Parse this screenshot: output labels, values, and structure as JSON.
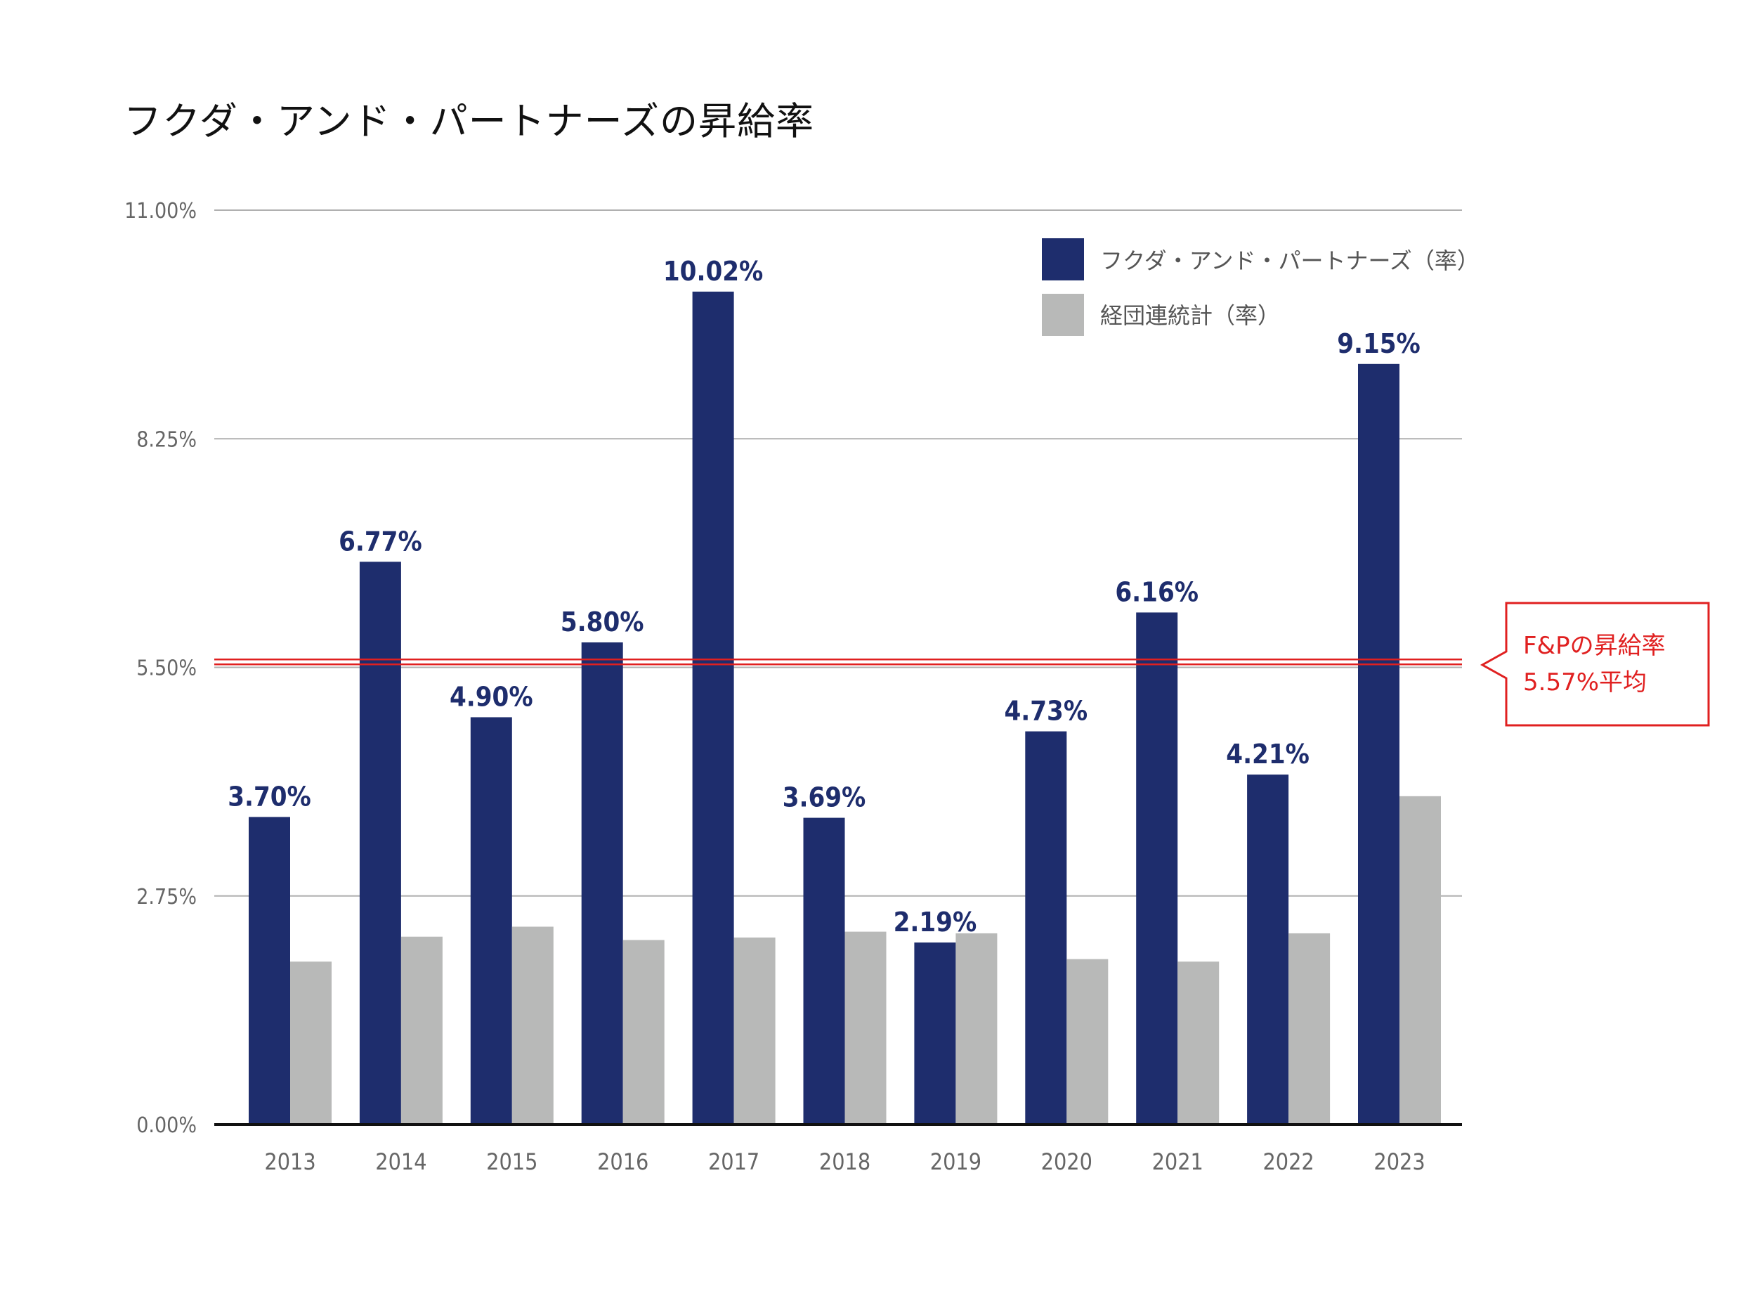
{
  "chart_data": {
    "type": "bar",
    "title": "フクダ・アンド・パートナーズの昇給率",
    "categories": [
      "2013",
      "2014",
      "2015",
      "2016",
      "2017",
      "2018",
      "2019",
      "2020",
      "2021",
      "2022",
      "2023"
    ],
    "series": [
      {
        "name": "フクダ・アンド・パートナーズ（率）",
        "color": "#1e2d6d",
        "values": [
          3.7,
          6.77,
          4.9,
          5.8,
          10.02,
          3.69,
          2.19,
          4.73,
          6.16,
          4.21,
          9.15
        ],
        "labels": [
          "3.70%",
          "6.77%",
          "4.90%",
          "5.80%",
          "10.02%",
          "3.69%",
          "2.19%",
          "4.73%",
          "6.16%",
          "4.21%",
          "9.15%"
        ]
      },
      {
        "name": "経団連統計（率）",
        "color": "#b8b9b8",
        "values": [
          1.96,
          2.26,
          2.38,
          2.22,
          2.25,
          2.32,
          2.3,
          1.99,
          1.96,
          2.3,
          3.95
        ]
      }
    ],
    "yticks": [
      "0.00%",
      "2.75%",
      "5.50%",
      "8.25%",
      "11.00%"
    ],
    "ytick_values": [
      0,
      2.75,
      5.5,
      8.25,
      11.0
    ],
    "ylim": [
      0,
      11.0
    ],
    "grid": true,
    "legend_position": "top-right",
    "average": {
      "value": 5.57,
      "color": "#e02020",
      "label_line1": "F&Pの昇給率",
      "label_line2": "5.57%平均"
    }
  }
}
